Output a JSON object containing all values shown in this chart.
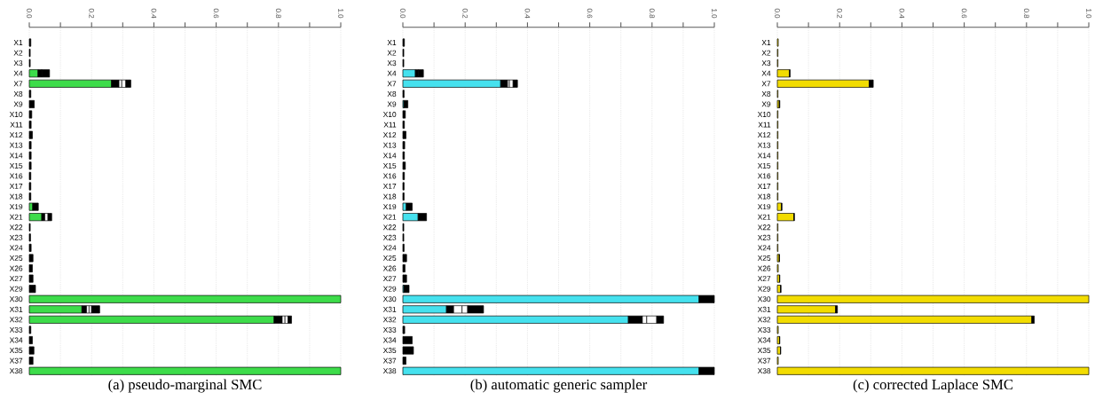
{
  "chart_data": [
    {
      "type": "bar",
      "orientation": "horizontal",
      "stacked": true,
      "title": "(a) pseudo-marginal SMC",
      "grid": "x",
      "categories": [
        "X1",
        "X2",
        "X3",
        "X4",
        "X7",
        "X8",
        "X9",
        "X10",
        "X11",
        "X12",
        "X13",
        "X14",
        "X15",
        "X16",
        "X17",
        "X18",
        "X19",
        "X21",
        "X22",
        "X23",
        "X24",
        "X25",
        "X26",
        "X27",
        "X29",
        "X30",
        "X31",
        "X32",
        "X33",
        "X34",
        "X35",
        "X37",
        "X38"
      ],
      "xlim": [
        0,
        1
      ],
      "xticks": [
        {
          "value": 0,
          "label": "0.0"
        },
        {
          "value": 0.1,
          "label": null
        },
        {
          "value": 0.2,
          "label": "0.2"
        },
        {
          "value": 0.3,
          "label": null
        },
        {
          "value": 0.4,
          "label": "0.4"
        },
        {
          "value": 0.5,
          "label": null
        },
        {
          "value": 0.6,
          "label": "0.6"
        },
        {
          "value": 0.7,
          "label": null
        },
        {
          "value": 0.8,
          "label": "0.8"
        },
        {
          "value": 0.9,
          "label": null
        },
        {
          "value": 1,
          "label": "1.0"
        }
      ],
      "series": [
        {
          "color": "#3ddc4a",
          "values": [
            null,
            null,
            null,
            0.028,
            0.264,
            null,
            null,
            null,
            null,
            null,
            null,
            null,
            null,
            null,
            null,
            null,
            0.011,
            0.04,
            null,
            null,
            null,
            null,
            null,
            null,
            null,
            1.0,
            0.169,
            0.786,
            null,
            null,
            null,
            null,
            1.0
          ]
        },
        {
          "color": "#000000",
          "values": [
            0.005,
            0.003,
            0.003,
            0.012,
            0.024,
            0.005,
            0.016,
            0.008,
            0.006,
            0.01,
            0.006,
            0.006,
            0.006,
            0.005,
            0.005,
            0.005,
            0.018,
            0.01,
            0.003,
            0.004,
            0.006,
            0.012,
            0.01,
            0.012,
            0.02,
            null,
            0.015,
            0.026,
            0.005,
            0.01,
            0.015,
            0.012,
            null
          ]
        },
        {
          "color": "#ffffff",
          "values": [
            null,
            null,
            null,
            null,
            0.009,
            null,
            null,
            null,
            null,
            null,
            null,
            null,
            null,
            null,
            null,
            null,
            null,
            0.01,
            null,
            null,
            null,
            null,
            null,
            null,
            null,
            null,
            0.008,
            0.009,
            null,
            null,
            null,
            null,
            null
          ]
        },
        {
          "color": "#ffffff",
          "values": [
            null,
            null,
            null,
            null,
            0.013,
            null,
            null,
            null,
            null,
            null,
            null,
            null,
            null,
            null,
            null,
            null,
            null,
            null,
            null,
            null,
            null,
            null,
            null,
            null,
            null,
            null,
            0.008,
            0.01,
            null,
            null,
            null,
            null,
            null
          ]
        },
        {
          "color": "#000000",
          "values": [
            null,
            null,
            null,
            0.025,
            0.016,
            null,
            null,
            null,
            null,
            null,
            null,
            null,
            null,
            null,
            null,
            null,
            null,
            0.012,
            null,
            null,
            null,
            null,
            null,
            null,
            null,
            null,
            0.026,
            0.011,
            null,
            null,
            null,
            null,
            null
          ]
        }
      ]
    },
    {
      "type": "bar",
      "orientation": "horizontal",
      "stacked": true,
      "title": "(b) automatic generic sampler",
      "grid": "x",
      "categories": [
        "X1",
        "X2",
        "X3",
        "X4",
        "X7",
        "X8",
        "X9",
        "X10",
        "X11",
        "X12",
        "X13",
        "X14",
        "X15",
        "X16",
        "X17",
        "X18",
        "X19",
        "X21",
        "X22",
        "X23",
        "X24",
        "X25",
        "X26",
        "X27",
        "X29",
        "X30",
        "X31",
        "X32",
        "X33",
        "X34",
        "X35",
        "X37",
        "X38"
      ],
      "xlim": [
        0,
        1
      ],
      "xticks": [
        {
          "value": 0,
          "label": "0.0"
        },
        {
          "value": 0.1,
          "label": null
        },
        {
          "value": 0.2,
          "label": "0.2"
        },
        {
          "value": 0.3,
          "label": null
        },
        {
          "value": 0.4,
          "label": "0.4"
        },
        {
          "value": 0.5,
          "label": null
        },
        {
          "value": 0.6,
          "label": "0.6"
        },
        {
          "value": 0.7,
          "label": null
        },
        {
          "value": 0.8,
          "label": "0.8"
        },
        {
          "value": 0.9,
          "label": null
        },
        {
          "value": 1,
          "label": "1.0"
        }
      ],
      "series": [
        {
          "color": "#45e1ee",
          "values": [
            null,
            null,
            null,
            0.04,
            0.314,
            null,
            0.003,
            null,
            null,
            null,
            null,
            null,
            null,
            null,
            null,
            null,
            0.011,
            0.049,
            null,
            null,
            null,
            null,
            null,
            null,
            0.003,
            0.951,
            0.14,
            0.724,
            null,
            null,
            null,
            null,
            0.951
          ]
        },
        {
          "color": "#000000",
          "values": [
            0.005,
            0.003,
            0.003,
            0.01,
            0.022,
            0.004,
            0.013,
            0.008,
            0.005,
            0.01,
            0.006,
            0.005,
            0.008,
            0.005,
            0.004,
            0.004,
            0.019,
            0.027,
            0.003,
            0.003,
            0.004,
            0.012,
            0.007,
            0.012,
            0.017,
            0.049,
            0.023,
            0.045,
            0.006,
            0.03,
            0.034,
            0.01,
            0.049
          ]
        },
        {
          "color": "#ffffff",
          "values": [
            null,
            null,
            null,
            null,
            0.006,
            null,
            null,
            null,
            null,
            null,
            null,
            null,
            null,
            null,
            null,
            null,
            null,
            null,
            null,
            null,
            null,
            null,
            null,
            null,
            null,
            null,
            0.027,
            0.014,
            null,
            null,
            null,
            null,
            null
          ]
        },
        {
          "color": "#ffffff",
          "values": [
            null,
            null,
            null,
            null,
            0.012,
            null,
            null,
            null,
            null,
            null,
            null,
            null,
            null,
            null,
            null,
            null,
            null,
            null,
            null,
            null,
            null,
            null,
            null,
            null,
            null,
            null,
            0.018,
            0.032,
            null,
            null,
            null,
            null,
            null
          ]
        },
        {
          "color": "#000000",
          "values": [
            null,
            null,
            null,
            0.016,
            0.014,
            null,
            null,
            null,
            null,
            null,
            null,
            null,
            null,
            null,
            null,
            null,
            null,
            null,
            null,
            null,
            null,
            null,
            null,
            null,
            null,
            null,
            0.051,
            0.022,
            null,
            null,
            null,
            null,
            null
          ]
        }
      ]
    },
    {
      "type": "bar",
      "orientation": "horizontal",
      "stacked": true,
      "title": "(c) corrected Laplace SMC",
      "grid": "x",
      "categories": [
        "X1",
        "X2",
        "X3",
        "X4",
        "X7",
        "X8",
        "X9",
        "X10",
        "X11",
        "X12",
        "X13",
        "X14",
        "X15",
        "X16",
        "X17",
        "X18",
        "X19",
        "X21",
        "X22",
        "X23",
        "X24",
        "X25",
        "X26",
        "X27",
        "X29",
        "X30",
        "X31",
        "X32",
        "X33",
        "X34",
        "X35",
        "X37",
        "X38"
      ],
      "xlim": [
        0,
        1
      ],
      "xticks": [
        {
          "value": 0,
          "label": "0.0"
        },
        {
          "value": 0.1,
          "label": null
        },
        {
          "value": 0.2,
          "label": "0.2"
        },
        {
          "value": 0.3,
          "label": null
        },
        {
          "value": 0.4,
          "label": "0.4"
        },
        {
          "value": 0.5,
          "label": null
        },
        {
          "value": 0.6,
          "label": "0.6"
        },
        {
          "value": 0.7,
          "label": null
        },
        {
          "value": 0.8,
          "label": "0.8"
        },
        {
          "value": 0.9,
          "label": null
        },
        {
          "value": 1,
          "label": "1.0"
        }
      ],
      "series": [
        {
          "color": "#f2dc00",
          "values": [
            0.003,
            0.002,
            0.002,
            0.039,
            0.295,
            0.002,
            0.006,
            0.002,
            0.002,
            0.002,
            0.002,
            0.002,
            0.002,
            0.002,
            0.002,
            0.002,
            0.013,
            0.053,
            0.002,
            0.002,
            0.002,
            0.006,
            0.003,
            0.007,
            0.01,
            1.0,
            0.187,
            0.817,
            0.003,
            0.007,
            0.01,
            0.003,
            1.0
          ]
        },
        {
          "color": "#000000",
          "values": [
            null,
            null,
            null,
            0.002,
            0.013,
            null,
            0.002,
            null,
            null,
            null,
            null,
            null,
            null,
            null,
            null,
            null,
            0.002,
            0.002,
            null,
            null,
            null,
            0.001,
            null,
            0.001,
            0.002,
            null,
            0.006,
            0.008,
            null,
            0.001,
            0.001,
            null,
            null
          ]
        }
      ]
    }
  ]
}
